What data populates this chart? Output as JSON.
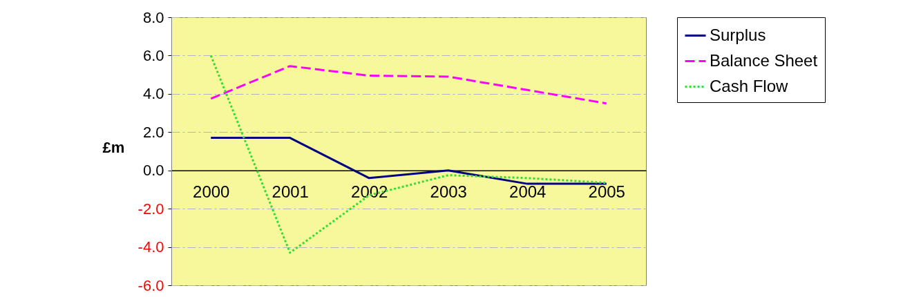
{
  "chart_data": {
    "type": "line",
    "ylabel": "£m",
    "categories": [
      "2000",
      "2001",
      "2002",
      "2003",
      "2004",
      "2005"
    ],
    "series": [
      {
        "name": "Surplus",
        "color": "#000080",
        "line_style": "solid",
        "values": [
          1.7,
          1.7,
          -0.4,
          0.0,
          -0.7,
          -0.7
        ]
      },
      {
        "name": "Balance Sheet",
        "color": "#ff00ff",
        "line_style": "dashed",
        "values": [
          3.75,
          5.45,
          4.95,
          4.9,
          4.2,
          3.5
        ]
      },
      {
        "name": "Cash Flow",
        "color": "#33dd33",
        "line_style": "dotted",
        "values": [
          6.0,
          -4.3,
          -1.3,
          -0.25,
          -0.4,
          -0.65
        ]
      }
    ],
    "ylim": [
      -6,
      8
    ],
    "yticks": [
      {
        "value": -6,
        "label": "-6.0"
      },
      {
        "value": -4,
        "label": "-4.0"
      },
      {
        "value": -2,
        "label": "-2.0"
      },
      {
        "value": 0,
        "label": "0.0"
      },
      {
        "value": 2,
        "label": "2.0"
      },
      {
        "value": 4,
        "label": "4.0"
      },
      {
        "value": 6,
        "label": "6.0"
      },
      {
        "value": 8,
        "label": "8.0"
      }
    ],
    "grid": "y",
    "legend": "right",
    "marker": "none"
  }
}
